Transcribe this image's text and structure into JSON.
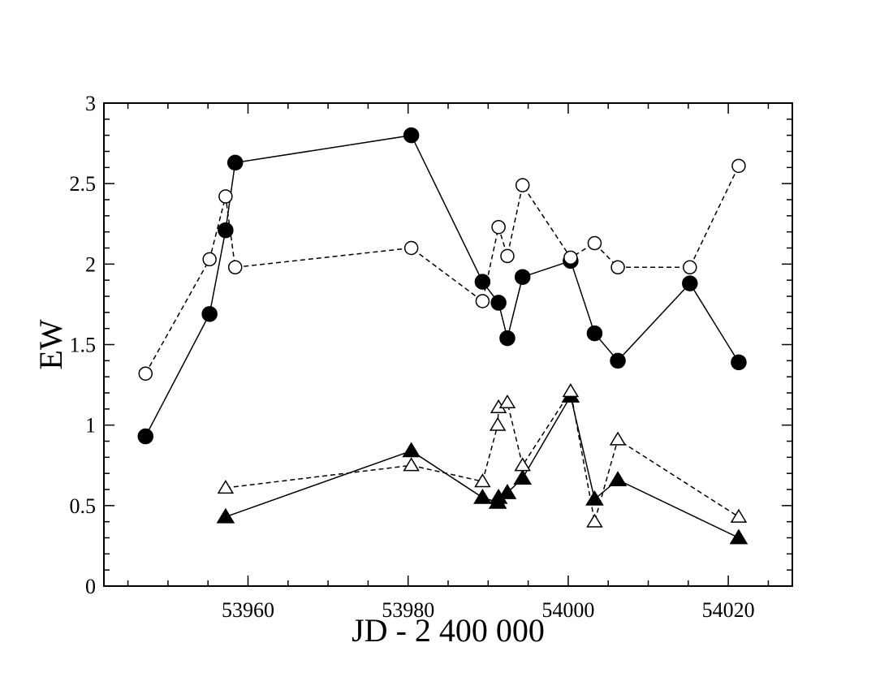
{
  "chart_data": {
    "type": "line",
    "title": "",
    "xlabel": "JD - 2 400 000",
    "ylabel": "EW",
    "xlim": [
      53942,
      54028
    ],
    "ylim": [
      0,
      3
    ],
    "xticks": [
      53960,
      53980,
      54000,
      54020
    ],
    "yticks": [
      0,
      0.5,
      1,
      1.5,
      2,
      2.5,
      3
    ],
    "ytick_labels": [
      "0",
      "0.5",
      "1",
      "1.5",
      "2",
      "2.5",
      "3"
    ],
    "grid": false,
    "legend": "none",
    "colors": {
      "line": "#000000",
      "background": "#ffffff"
    },
    "series": [
      {
        "marker": "filled-circle",
        "line": "solid",
        "x": [
          53947.2,
          53955.2,
          53957.2,
          53958.4,
          53980.4,
          53989.3,
          53991.3,
          53992.4,
          53994.3,
          54000.3,
          54003.3,
          54006.2,
          54015.2,
          54021.3
        ],
        "y": [
          0.93,
          1.69,
          2.21,
          2.63,
          2.8,
          1.89,
          1.76,
          1.54,
          1.92,
          2.02,
          1.57,
          1.4,
          1.88,
          1.39
        ]
      },
      {
        "marker": "open-circle",
        "line": "dashed",
        "x": [
          53947.2,
          53955.2,
          53957.2,
          53958.4,
          53980.4,
          53989.3,
          53991.3,
          53992.4,
          53994.3,
          54000.3,
          54003.3,
          54006.2,
          54015.2,
          54021.3
        ],
        "y": [
          1.32,
          2.03,
          2.42,
          1.98,
          2.1,
          1.77,
          2.23,
          2.05,
          2.49,
          2.04,
          2.13,
          1.98,
          1.98,
          2.61
        ]
      },
      {
        "marker": "filled-triangle",
        "line": "solid",
        "x": [
          53957.2,
          53980.4,
          53989.3,
          53991.2,
          53991.3,
          53992.4,
          53994.3,
          54000.3,
          54003.3,
          54006.2,
          54021.3
        ],
        "y": [
          0.43,
          0.84,
          0.55,
          0.52,
          0.55,
          0.58,
          0.67,
          1.18,
          0.54,
          0.66,
          0.3
        ]
      },
      {
        "marker": "open-triangle",
        "line": "dashed",
        "x": [
          53957.2,
          53980.4,
          53989.3,
          53991.2,
          53991.3,
          53992.4,
          53994.3,
          54000.3,
          54003.3,
          54006.2,
          54021.3
        ],
        "y": [
          0.61,
          0.75,
          0.65,
          1.0,
          1.11,
          1.14,
          0.75,
          1.21,
          0.4,
          0.91,
          0.43
        ]
      }
    ]
  }
}
